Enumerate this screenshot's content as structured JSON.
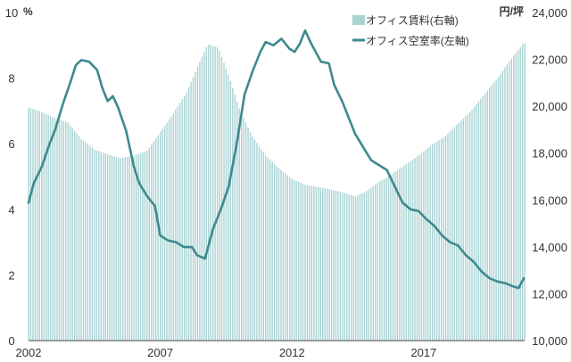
{
  "chart_data": {
    "type": "bar+line",
    "title": "",
    "left_axis": {
      "unit": "%",
      "min": 0,
      "max": 10,
      "ticks": [
        0,
        2,
        4,
        6,
        8,
        10
      ],
      "tick_labels": [
        "0",
        "2",
        "4",
        "6",
        "8",
        "10"
      ]
    },
    "right_axis": {
      "unit": "円/坪",
      "min": 10000,
      "max": 24000,
      "ticks": [
        10000,
        12000,
        14000,
        16000,
        18000,
        20000,
        22000,
        24000
      ],
      "tick_labels": [
        "10,000",
        "12,000",
        "14,000",
        "16,000",
        "18,000",
        "20,000",
        "22,000",
        "24,000"
      ]
    },
    "x_axis": {
      "start": 2002.0,
      "end": 2020.83,
      "tick_labels": [
        {
          "x": 2002,
          "label": "2002"
        },
        {
          "x": 2007,
          "label": "2007"
        },
        {
          "x": 2012,
          "label": "2012"
        },
        {
          "x": 2017,
          "label": "2017"
        }
      ]
    },
    "series": [
      {
        "name": "オフィス賃料(右軸)",
        "kind": "bar",
        "axis": "right",
        "color": "#a9d2d3",
        "points": [
          [
            2002.0,
            19950
          ],
          [
            2002.5,
            19750
          ],
          [
            2003.0,
            19500
          ],
          [
            2003.5,
            19300
          ],
          [
            2004.0,
            18600
          ],
          [
            2004.5,
            18150
          ],
          [
            2005.0,
            17950
          ],
          [
            2005.5,
            17780
          ],
          [
            2006.0,
            17900
          ],
          [
            2006.5,
            18100
          ],
          [
            2007.0,
            18900
          ],
          [
            2007.5,
            19700
          ],
          [
            2008.0,
            20600
          ],
          [
            2008.5,
            21900
          ],
          [
            2008.8,
            22650
          ],
          [
            2009.2,
            22500
          ],
          [
            2009.6,
            21300
          ],
          [
            2010.0,
            19900
          ],
          [
            2010.5,
            18700
          ],
          [
            2011.0,
            17900
          ],
          [
            2011.5,
            17350
          ],
          [
            2012.0,
            16900
          ],
          [
            2012.5,
            16650
          ],
          [
            2013.0,
            16550
          ],
          [
            2013.5,
            16450
          ],
          [
            2014.0,
            16300
          ],
          [
            2014.4,
            16150
          ],
          [
            2014.8,
            16350
          ],
          [
            2015.2,
            16700
          ],
          [
            2015.8,
            17100
          ],
          [
            2016.3,
            17500
          ],
          [
            2016.8,
            17900
          ],
          [
            2017.3,
            18350
          ],
          [
            2017.8,
            18700
          ],
          [
            2018.2,
            19150
          ],
          [
            2018.8,
            19800
          ],
          [
            2019.3,
            20500
          ],
          [
            2019.8,
            21200
          ],
          [
            2020.3,
            22000
          ],
          [
            2020.8,
            22700
          ]
        ]
      },
      {
        "name": "オフィス空室率(左軸)",
        "kind": "line",
        "axis": "left",
        "color": "#3d8a8f",
        "points": [
          [
            2002.0,
            4.2
          ],
          [
            2002.2,
            4.8
          ],
          [
            2002.5,
            5.3
          ],
          [
            2002.8,
            6.0
          ],
          [
            2003.0,
            6.4
          ],
          [
            2003.3,
            7.2
          ],
          [
            2003.6,
            7.9
          ],
          [
            2003.8,
            8.4
          ],
          [
            2004.0,
            8.55
          ],
          [
            2004.3,
            8.5
          ],
          [
            2004.6,
            8.25
          ],
          [
            2004.8,
            7.7
          ],
          [
            2005.0,
            7.3
          ],
          [
            2005.2,
            7.45
          ],
          [
            2005.4,
            7.1
          ],
          [
            2005.7,
            6.4
          ],
          [
            2006.0,
            5.3
          ],
          [
            2006.2,
            4.8
          ],
          [
            2006.5,
            4.4
          ],
          [
            2006.8,
            4.1
          ],
          [
            2007.0,
            3.2
          ],
          [
            2007.3,
            3.05
          ],
          [
            2007.6,
            3.0
          ],
          [
            2007.9,
            2.85
          ],
          [
            2008.2,
            2.85
          ],
          [
            2008.4,
            2.6
          ],
          [
            2008.7,
            2.5
          ],
          [
            2009.0,
            3.4
          ],
          [
            2009.3,
            4.0
          ],
          [
            2009.6,
            4.7
          ],
          [
            2009.9,
            6.0
          ],
          [
            2010.2,
            7.5
          ],
          [
            2010.5,
            8.2
          ],
          [
            2010.8,
            8.8
          ],
          [
            2011.0,
            9.1
          ],
          [
            2011.3,
            9.0
          ],
          [
            2011.6,
            9.2
          ],
          [
            2011.9,
            8.9
          ],
          [
            2012.1,
            8.8
          ],
          [
            2012.3,
            9.05
          ],
          [
            2012.5,
            9.45
          ],
          [
            2012.7,
            9.1
          ],
          [
            2012.9,
            8.8
          ],
          [
            2013.1,
            8.5
          ],
          [
            2013.4,
            8.45
          ],
          [
            2013.6,
            7.8
          ],
          [
            2013.9,
            7.3
          ],
          [
            2014.1,
            6.9
          ],
          [
            2014.4,
            6.3
          ],
          [
            2014.7,
            5.9
          ],
          [
            2015.0,
            5.5
          ],
          [
            2015.3,
            5.35
          ],
          [
            2015.6,
            5.2
          ],
          [
            2015.9,
            4.7
          ],
          [
            2016.2,
            4.2
          ],
          [
            2016.5,
            4.0
          ],
          [
            2016.8,
            3.95
          ],
          [
            2017.1,
            3.7
          ],
          [
            2017.4,
            3.5
          ],
          [
            2017.7,
            3.2
          ],
          [
            2018.0,
            3.0
          ],
          [
            2018.3,
            2.9
          ],
          [
            2018.6,
            2.6
          ],
          [
            2018.9,
            2.4
          ],
          [
            2019.2,
            2.1
          ],
          [
            2019.5,
            1.9
          ],
          [
            2019.8,
            1.8
          ],
          [
            2020.1,
            1.75
          ],
          [
            2020.4,
            1.65
          ],
          [
            2020.6,
            1.6
          ],
          [
            2020.8,
            1.9
          ]
        ]
      }
    ],
    "legend": [
      {
        "name": "オフィス賃料(右軸)",
        "swatch": "bar"
      },
      {
        "name": "オフィス空室率(左軸)",
        "swatch": "line"
      }
    ],
    "legend_position": "top-right",
    "grid": false
  }
}
